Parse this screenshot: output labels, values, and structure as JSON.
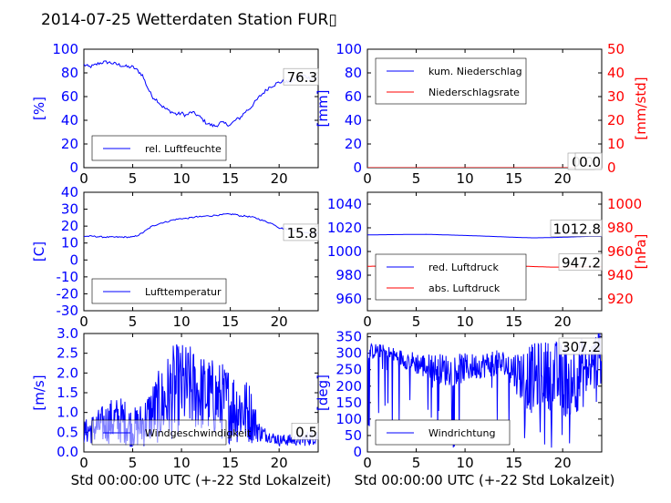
{
  "title": "2014-07-25 Wetterdaten Station FUR▯",
  "chart_data": [
    {
      "id": "humidity",
      "type": "line",
      "xlim": [
        0,
        24
      ],
      "ylim": [
        0,
        100
      ],
      "yticks": [
        0,
        20,
        40,
        60,
        80,
        100
      ],
      "xticks": [
        0,
        5,
        10,
        15,
        20
      ],
      "ylabel": "[%]",
      "current_label": "76.3",
      "legend": [
        {
          "name": "rel. Luftfeuchte",
          "color": "#0000ff"
        }
      ],
      "series": [
        {
          "name": "rel. Luftfeuchte",
          "color": "#0000ff",
          "x": [
            0,
            0.5,
            1,
            1.5,
            2,
            2.5,
            3,
            3.5,
            4,
            4.5,
            5,
            5.5,
            6,
            6.5,
            7,
            7.5,
            8,
            8.5,
            9,
            9.5,
            10,
            10.5,
            11,
            11.5,
            12,
            12.5,
            13,
            13.5,
            14,
            14.5,
            15,
            15.5,
            16,
            16.5,
            17,
            17.5,
            18,
            18.5,
            19,
            19.5,
            20,
            20.5,
            21,
            21.5,
            22,
            22.5,
            23,
            23.5,
            24
          ],
          "y": [
            87,
            85,
            86,
            88,
            89,
            89,
            88,
            87,
            86,
            85,
            85,
            82,
            78,
            68,
            60,
            57,
            52,
            49,
            47,
            45,
            46,
            44,
            47,
            45,
            42,
            38,
            36,
            35,
            38,
            37,
            36,
            40,
            42,
            47,
            50,
            55,
            60,
            64,
            68,
            70,
            72,
            73,
            72,
            74,
            76,
            78,
            76,
            75,
            76
          ]
        }
      ]
    },
    {
      "id": "precip",
      "type": "line",
      "xlim": [
        0,
        24
      ],
      "ylim": [
        0,
        100
      ],
      "yticks": [
        0,
        20,
        40,
        60,
        80,
        100
      ],
      "y2lim": [
        0,
        50
      ],
      "y2ticks": [
        0,
        10,
        20,
        30,
        40,
        50
      ],
      "xticks": [
        0,
        5,
        10,
        15,
        20
      ],
      "ylabel": "[mm]",
      "y2label": "[mm/std]",
      "current_label": "0.0",
      "current_label2": "0.0",
      "legend": [
        {
          "name": "kum. Niederschlag",
          "color": "#0000ff"
        },
        {
          "name": "Niederschlagsrate",
          "color": "#ff0000"
        }
      ],
      "series": [
        {
          "name": "kum. Niederschlag",
          "color": "#0000ff",
          "axis": "left",
          "x": [
            0,
            24
          ],
          "y": [
            0,
            0
          ]
        },
        {
          "name": "Niederschlagsrate",
          "color": "#ff0000",
          "axis": "right",
          "x": [
            0,
            24
          ],
          "y": [
            0,
            0
          ]
        }
      ]
    },
    {
      "id": "temperature",
      "type": "line",
      "xlim": [
        0,
        24
      ],
      "ylim": [
        -30,
        40
      ],
      "yticks": [
        -30,
        -20,
        -10,
        0,
        10,
        20,
        30,
        40
      ],
      "xticks": [
        0,
        5,
        10,
        15,
        20
      ],
      "ylabel": "[C]",
      "current_label": "15.8",
      "legend": [
        {
          "name": "Lufttemperatur",
          "color": "#0000ff"
        }
      ],
      "series": [
        {
          "name": "Lufttemperatur",
          "color": "#0000ff",
          "x": [
            0,
            1,
            2,
            3,
            4,
            5,
            5.5,
            6,
            6.5,
            7,
            7.5,
            8,
            8.5,
            9,
            9.5,
            10,
            10.5,
            11,
            11.5,
            12,
            12.5,
            13,
            13.5,
            14,
            14.5,
            15,
            15.5,
            16,
            16.5,
            17,
            17.5,
            18,
            18.5,
            19,
            19.5,
            20,
            21,
            22,
            23,
            24
          ],
          "y": [
            14,
            14,
            13.5,
            13.5,
            13.5,
            13.5,
            14.5,
            16,
            18,
            20,
            21,
            22,
            22.5,
            23.5,
            24,
            24.5,
            24.5,
            25,
            25.5,
            25.5,
            26,
            26,
            26.5,
            26.5,
            27,
            27,
            27,
            26,
            26,
            25.5,
            25,
            24,
            23,
            22,
            21,
            19,
            18,
            17,
            16,
            15.8
          ]
        }
      ]
    },
    {
      "id": "pressure",
      "type": "line",
      "xlim": [
        0,
        24
      ],
      "ylim": [
        950,
        1050
      ],
      "yticks": [
        960,
        980,
        1000,
        1020,
        1040
      ],
      "y2lim": [
        910,
        1010
      ],
      "y2ticks": [
        920,
        940,
        960,
        980,
        1000
      ],
      "xticks": [
        0,
        5,
        10,
        15,
        20
      ],
      "y2label": "[hPa]",
      "current_label": "1012.8",
      "current_label2": "947.2",
      "legend": [
        {
          "name": "red. Luftdruck",
          "color": "#0000ff"
        },
        {
          "name": "abs. Luftdruck",
          "color": "#ff0000"
        }
      ],
      "series": [
        {
          "name": "red. Luftdruck",
          "color": "#0000ff",
          "axis": "left",
          "x": [
            0,
            3,
            6,
            9,
            12,
            15,
            17,
            19,
            21,
            22,
            23,
            24
          ],
          "y": [
            1014,
            1014.3,
            1014.5,
            1013.8,
            1013,
            1012,
            1011.5,
            1011.8,
            1012.3,
            1012.6,
            1012.8,
            1012.8
          ]
        },
        {
          "name": "abs. Luftdruck",
          "color": "#ff0000",
          "axis": "right",
          "x": [
            0,
            3,
            6,
            9,
            12,
            15,
            17,
            19,
            21,
            22,
            23,
            24
          ],
          "y": [
            947.5,
            948,
            948.5,
            949,
            948.8,
            948,
            947.3,
            946.8,
            947,
            947.2,
            947.2,
            947.2
          ]
        }
      ]
    },
    {
      "id": "windspeed",
      "type": "line",
      "xlim": [
        0,
        24
      ],
      "ylim": [
        0,
        3
      ],
      "yticks": [
        0.0,
        0.5,
        1.0,
        1.5,
        2.0,
        2.5,
        3.0
      ],
      "xticks": [
        0,
        5,
        10,
        15,
        20
      ],
      "ylabel": "[m/s]",
      "xlabel": "Std 00:00:00 UTC (+-22 Std Lokalzeit)",
      "current_label": "0.5",
      "legend": [
        {
          "name": "Windgeschwindigkeit",
          "color": "#0000ff"
        }
      ],
      "series": [
        {
          "name": "Windgeschwindigkeit",
          "color": "#0000ff",
          "noisy": true,
          "x": [
            0,
            1,
            2,
            3,
            4,
            5,
            6,
            7,
            8,
            9,
            10,
            11,
            12,
            13,
            14,
            15,
            16,
            17,
            18,
            19,
            20,
            21,
            22,
            23,
            24
          ],
          "y": [
            0.5,
            0.6,
            0.7,
            0.8,
            0.8,
            0.6,
            0.7,
            1.0,
            1.2,
            1.5,
            1.6,
            1.6,
            1.5,
            1.4,
            1.3,
            1.2,
            1.1,
            1.0,
            0.5,
            0.4,
            0.3,
            0.3,
            0.3,
            0.35,
            0.4
          ],
          "amp": [
            0.3,
            0.4,
            0.5,
            0.6,
            0.6,
            0.5,
            0.6,
            0.8,
            1.0,
            1.2,
            1.2,
            1.1,
            1.0,
            1.0,
            1.0,
            1.0,
            0.9,
            0.8,
            0.25,
            0.15,
            0.15,
            0.15,
            0.15,
            0.2,
            0.2
          ]
        }
      ]
    },
    {
      "id": "winddir",
      "type": "line",
      "xlim": [
        0,
        24
      ],
      "ylim": [
        0,
        360
      ],
      "yticks": [
        0,
        50,
        100,
        150,
        200,
        250,
        300,
        350
      ],
      "xticks": [
        0,
        5,
        10,
        15,
        20
      ],
      "ylabel": "[deg]",
      "xlabel": "Std 00:00:00 UTC (+-22 Std Lokalzeit)",
      "current_label": "307.2",
      "legend": [
        {
          "name": "Windrichtung",
          "color": "#0000ff"
        }
      ],
      "series": [
        {
          "name": "Windrichtung",
          "color": "#0000ff",
          "noisy": true,
          "x": [
            0,
            1,
            2,
            3,
            4,
            5,
            6,
            7,
            8,
            9,
            10,
            11,
            12,
            13,
            14,
            15,
            16,
            17,
            18,
            19,
            20,
            21,
            22,
            23,
            24
          ],
          "y": [
            300,
            310,
            300,
            290,
            280,
            270,
            260,
            255,
            250,
            250,
            255,
            260,
            265,
            270,
            265,
            250,
            230,
            220,
            240,
            230,
            220,
            230,
            240,
            260,
            300
          ],
          "amp": [
            30,
            20,
            25,
            25,
            30,
            35,
            40,
            45,
            50,
            50,
            45,
            40,
            40,
            40,
            45,
            60,
            90,
            110,
            100,
            110,
            120,
            120,
            110,
            100,
            90
          ]
        }
      ]
    }
  ]
}
